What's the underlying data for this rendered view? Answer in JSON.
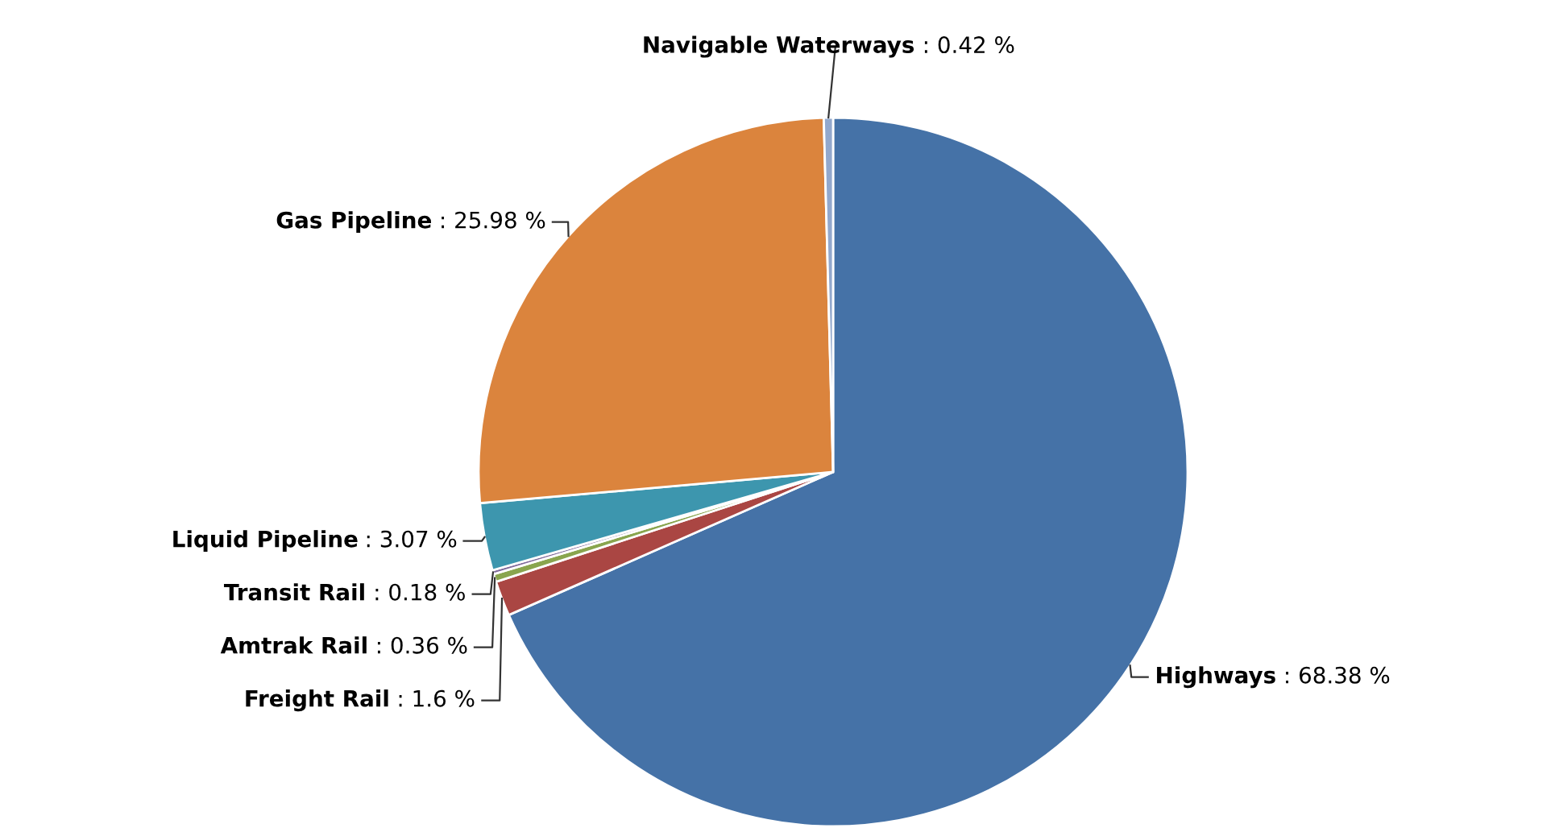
{
  "chart_data": {
    "type": "pie",
    "categories": [
      "Highways",
      "Freight Rail",
      "Amtrak Rail",
      "Transit Rail",
      "Liquid Pipeline",
      "Gas Pipeline",
      "Navigable Waterways"
    ],
    "values": [
      68.38,
      1.6,
      0.36,
      0.18,
      3.07,
      25.98,
      0.42
    ],
    "value_labels": [
      ": 68.38 %",
      ": 1.6 %",
      ": 0.36 %",
      ": 0.18 %",
      ": 3.07 %",
      ": 25.98 %",
      ": 0.42 %"
    ],
    "colors": [
      "#4572a7",
      "#aa4643",
      "#89a54e",
      "#80699b",
      "#3d96ae",
      "#db843d",
      "#92a8cd"
    ]
  }
}
